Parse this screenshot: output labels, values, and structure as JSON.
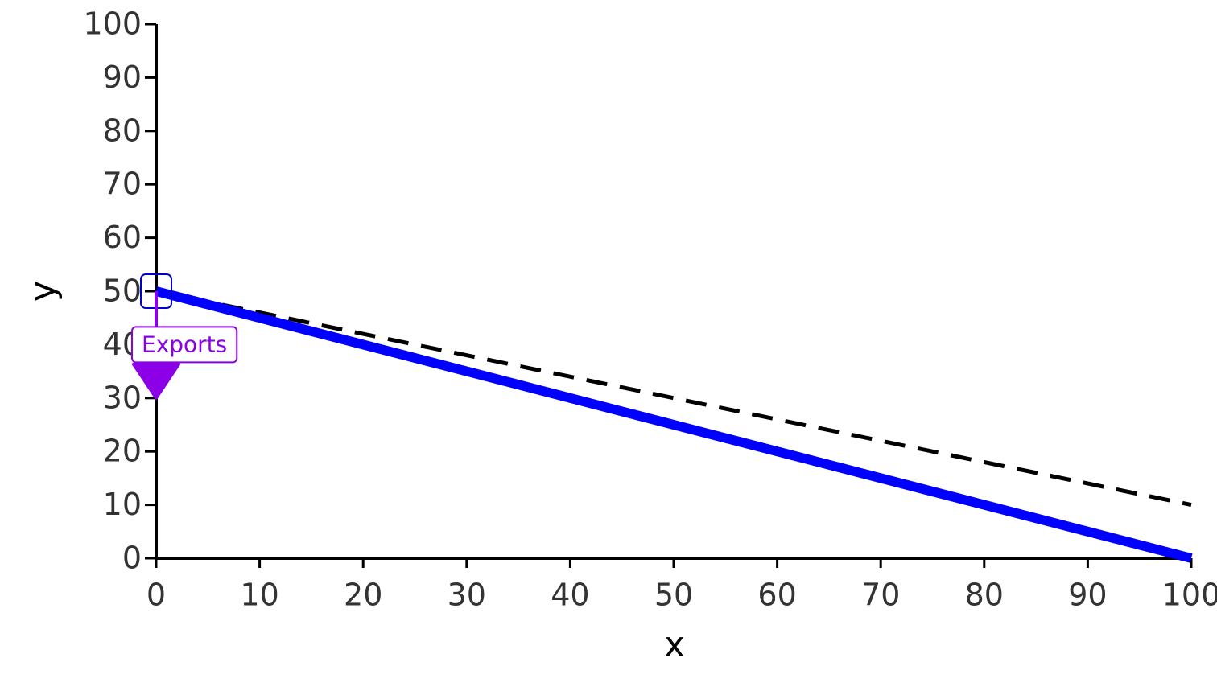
{
  "chart_data": {
    "type": "line",
    "x_label": "x",
    "y_label": "y",
    "x": [
      0,
      100
    ],
    "series": [
      {
        "color": "#0000ff",
        "values": [
          50,
          0
        ],
        "dashed": false
      },
      {
        "color": "#000000",
        "values": [
          50,
          10
        ],
        "dashed": true
      }
    ],
    "xlim": [
      0,
      100
    ],
    "ylim": [
      0,
      100
    ],
    "xticks": [
      0,
      10,
      20,
      30,
      40,
      50,
      60,
      70,
      80,
      90,
      100
    ],
    "yticks": [
      0,
      10,
      20,
      30,
      40,
      50,
      60,
      70,
      80,
      90,
      100
    ],
    "grid": false,
    "annotations": [
      {
        "label": "Exports",
        "x": 0,
        "y_start": 50,
        "y_end": 30,
        "color": "#8b00e6"
      }
    ],
    "highlights": [
      {
        "x": 0,
        "y": 50,
        "color": "#0000cc"
      }
    ]
  }
}
